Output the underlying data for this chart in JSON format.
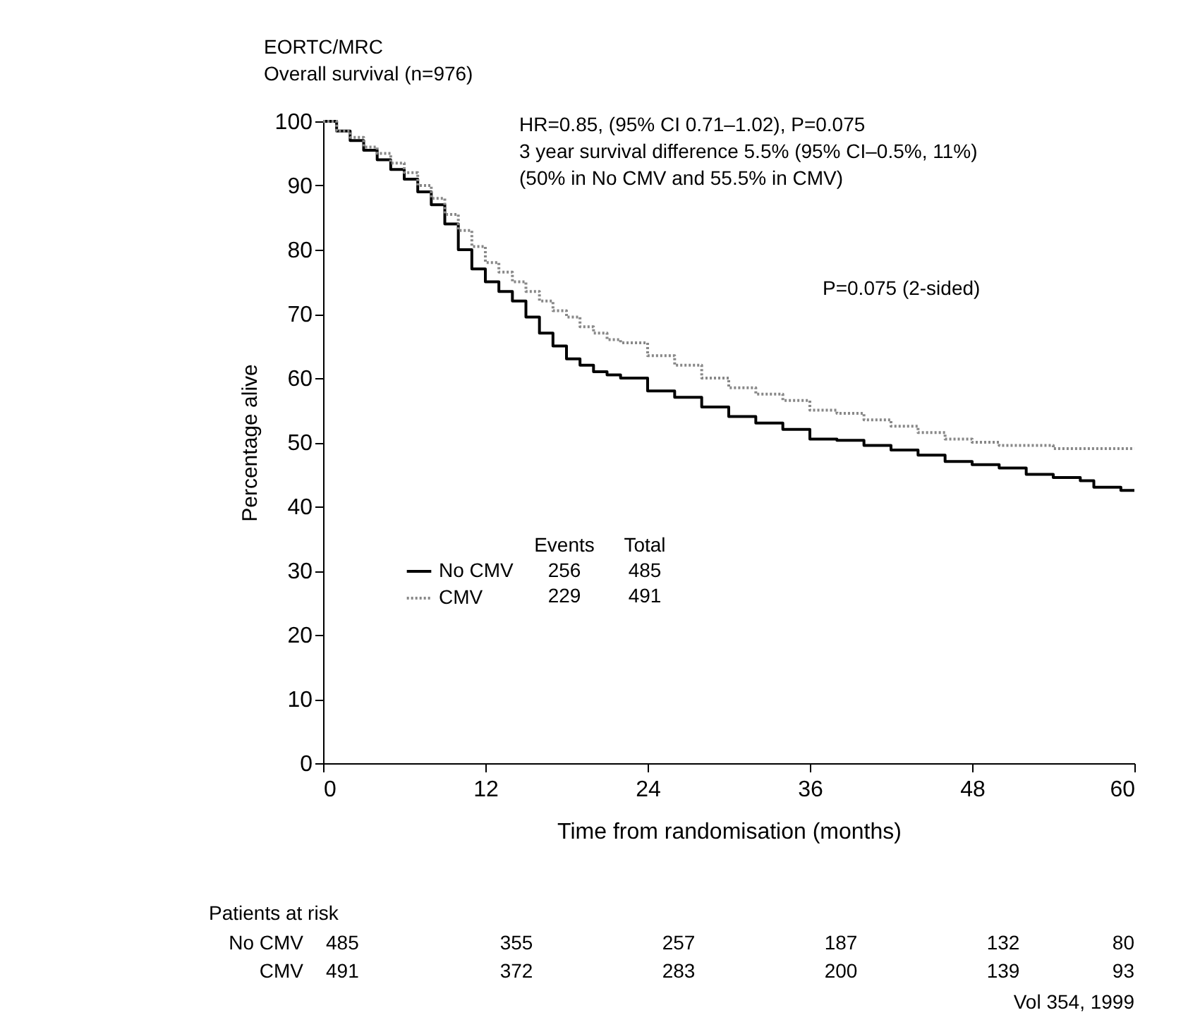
{
  "chart_data": {
    "type": "step",
    "title": "EORTC/MRC",
    "subtitle": "Overall survival (n=976)",
    "xlabel": "Time from randomisation (months)",
    "ylabel": "Percentage alive",
    "xlim": [
      0,
      60
    ],
    "xticks": [
      0,
      12,
      24,
      36,
      48,
      60
    ],
    "ylim": [
      0,
      100
    ],
    "yticks": [
      0,
      10,
      20,
      30,
      40,
      50,
      60,
      70,
      80,
      90,
      100
    ],
    "grid": false,
    "legend": "bottom left",
    "marker": "none",
    "series": [
      {
        "name": "No CMV",
        "color": "#000000",
        "line_style": "solid",
        "x": [
          0,
          1,
          2,
          3,
          4,
          5,
          6,
          7,
          8,
          9,
          10,
          11,
          12,
          13,
          14,
          15,
          16,
          17,
          18,
          19,
          20,
          21,
          22,
          24,
          26,
          28,
          30,
          32,
          34,
          36,
          38,
          40,
          42,
          44,
          46,
          48,
          50,
          52,
          54,
          56,
          57,
          58,
          59,
          60
        ],
        "values": [
          100,
          98.5,
          97,
          95.5,
          94,
          92.5,
          91,
          89,
          87,
          84,
          80,
          77,
          75,
          73.5,
          72,
          69.5,
          67,
          65,
          63,
          62,
          61,
          60.5,
          60,
          58,
          57,
          55.5,
          54,
          53,
          52,
          50.5,
          50.3,
          49.5,
          48.8,
          48,
          47,
          46.5,
          46,
          45,
          44.5,
          44,
          43,
          43,
          42.5,
          42.5
        ]
      },
      {
        "name": "CMV",
        "color": "#888888",
        "line_style": "dotted",
        "x": [
          0,
          1,
          2,
          3,
          4,
          5,
          6,
          7,
          8,
          9,
          10,
          11,
          12,
          13,
          14,
          15,
          16,
          17,
          18,
          19,
          20,
          21,
          22,
          24,
          26,
          28,
          30,
          32,
          34,
          36,
          38,
          40,
          42,
          44,
          46,
          48,
          50,
          52,
          54,
          56,
          58,
          60
        ],
        "values": [
          100,
          98.5,
          97.5,
          96,
          95,
          93.5,
          92,
          90,
          88,
          85.5,
          83,
          80.5,
          78,
          76.5,
          75,
          73.5,
          72,
          70.5,
          69.5,
          68,
          67,
          66,
          65.5,
          63.5,
          62,
          60,
          58.5,
          57.5,
          56.5,
          55,
          54.5,
          53.5,
          52.5,
          51.5,
          50.5,
          50,
          49.5,
          49.5,
          49,
          49,
          49,
          49
        ]
      }
    ],
    "annotations": [
      "HR=0.85, (95% CI 0.71–1.02), P=0.075",
      "3 year survival difference 5.5% (95% CI–0.5%, 11%)",
      "(50% in No CMV and 55.5% in CMV)",
      "P=0.075 (2-sided)",
      "Events",
      "Total",
      "256",
      "485",
      "229",
      "491",
      "Patients at risk",
      "No CMV",
      "CMV",
      "485",
      "355",
      "257",
      "187",
      "132",
      "80",
      "491",
      "372",
      "283",
      "200",
      "139",
      "93",
      "Vol 354, 1999"
    ]
  }
}
